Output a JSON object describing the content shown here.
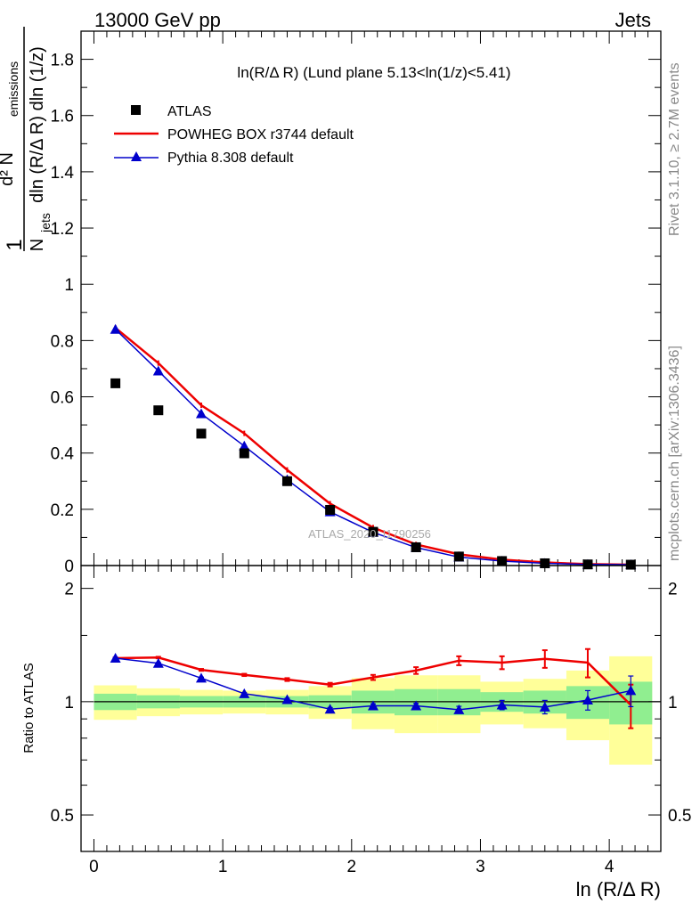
{
  "header": {
    "left": "13000 GeV pp",
    "right": "Jets"
  },
  "side_text": {
    "rivet": "Rivet 3.1.10, ≥ 2.7M events",
    "mcplots": "mcplots.cern.ch [arXiv:1306.3436]"
  },
  "watermark": "ATLAS_2020_I1790256",
  "colors": {
    "atlas": "#000000",
    "powheg": "#ee0000",
    "pythia": "#0000cc",
    "band_inner": "#90ee90",
    "band_outer": "#ffff99"
  },
  "chart_data": [
    {
      "type": "line",
      "title": "ln(R/Δ R) (Lund plane 5.13<ln(1/z)<5.41)",
      "xlabel": "ln (R/Δ R)",
      "ylabel": "1/N_jets d²N_emissions / dln(R/Δ R) dln(1/z)",
      "ylabel_parts": {
        "one": "1",
        "numer_d": "d² N",
        "numer_sub": "emissions",
        "denom_n": "N",
        "denom_sub": "jets",
        "denom_rest": "dln (R/Δ R) dln (1/z)"
      },
      "xlim": [
        -0.1,
        4.4
      ],
      "ylim": [
        0,
        1.9
      ],
      "yticks": [
        0,
        0.2,
        0.4,
        0.6,
        0.8,
        1,
        1.2,
        1.4,
        1.6,
        1.8
      ],
      "ytick_labels": [
        "0",
        "0.2",
        "0.4",
        "0.6",
        "0.8",
        "1",
        "1.2",
        "1.4",
        "1.6",
        "1.8"
      ],
      "legend_position": "top-left",
      "series": [
        {
          "name": "ATLAS",
          "style": "points",
          "x": [
            0.167,
            0.5,
            0.833,
            1.167,
            1.5,
            1.833,
            2.167,
            2.5,
            2.833,
            3.167,
            3.5,
            3.833,
            4.167
          ],
          "y": [
            0.648,
            0.552,
            0.469,
            0.399,
            0.3,
            0.198,
            0.12,
            0.065,
            0.032,
            0.016,
            0.008,
            0.004,
            0.003
          ]
        },
        {
          "name": "POWHEG BOX r3744 default",
          "style": "line",
          "x": [
            0.167,
            0.5,
            0.833,
            1.167,
            1.5,
            1.833,
            2.167,
            2.5,
            2.833,
            3.167,
            3.5,
            3.833,
            4.167
          ],
          "y": [
            0.845,
            0.72,
            0.57,
            0.47,
            0.34,
            0.22,
            0.135,
            0.075,
            0.04,
            0.021,
            0.011,
            0.005,
            0.003
          ]
        },
        {
          "name": "Pythia 8.308 default",
          "style": "line-triangles",
          "x": [
            0.167,
            0.5,
            0.833,
            1.167,
            1.5,
            1.833,
            2.167,
            2.5,
            2.833,
            3.167,
            3.5,
            3.833,
            4.167
          ],
          "y": [
            0.84,
            0.692,
            0.54,
            0.425,
            0.305,
            0.191,
            0.118,
            0.064,
            0.03,
            0.016,
            0.008,
            0.004,
            0.003
          ]
        }
      ]
    },
    {
      "type": "line",
      "title": "",
      "xlabel": "ln (R/Δ R)",
      "ylabel": "Ratio to ATLAS",
      "xlim": [
        -0.1,
        4.4
      ],
      "ylim": [
        0.4,
        2.3
      ],
      "log_y": true,
      "xticks": [
        0,
        1,
        2,
        3,
        4
      ],
      "xtick_labels": [
        "0",
        "1",
        "2",
        "3",
        "4"
      ],
      "yticks": [
        0.5,
        1,
        2
      ],
      "ytick_labels": [
        "0.5",
        "1",
        "2"
      ],
      "bin_edges": [
        0,
        0.333,
        0.667,
        1.0,
        1.333,
        1.667,
        2.0,
        2.333,
        2.667,
        3.0,
        3.333,
        3.667,
        4.0,
        4.333
      ],
      "band_inner": {
        "lo": [
          0.95,
          0.96,
          0.965,
          0.965,
          0.965,
          0.96,
          0.93,
          0.92,
          0.92,
          0.94,
          0.93,
          0.9,
          0.87
        ],
        "hi": [
          1.05,
          1.04,
          1.035,
          1.035,
          1.035,
          1.04,
          1.07,
          1.08,
          1.08,
          1.06,
          1.07,
          1.1,
          1.13
        ]
      },
      "band_outer": {
        "lo": [
          0.895,
          0.915,
          0.925,
          0.93,
          0.925,
          0.9,
          0.845,
          0.825,
          0.825,
          0.87,
          0.85,
          0.79,
          0.68
        ]
      },
      "band_outer_hi": [
        1.105,
        1.085,
        1.075,
        1.07,
        1.075,
        1.1,
        1.155,
        1.175,
        1.175,
        1.13,
        1.15,
        1.21,
        1.32
      ],
      "series": [
        {
          "name": "POWHEG BOX r3744 default",
          "x": [
            0.167,
            0.5,
            0.833,
            1.167,
            1.5,
            1.833,
            2.167,
            2.5,
            2.833,
            3.167,
            3.5,
            3.833,
            4.167
          ],
          "y": [
            1.305,
            1.31,
            1.215,
            1.178,
            1.145,
            1.11,
            1.16,
            1.21,
            1.285,
            1.27,
            1.3,
            1.27,
            0.98
          ],
          "err": [
            0.005,
            0.006,
            0.007,
            0.008,
            0.01,
            0.012,
            0.018,
            0.025,
            0.035,
            0.05,
            0.07,
            0.11,
            0.13
          ]
        },
        {
          "name": "Pythia 8.308 default",
          "x": [
            0.167,
            0.5,
            0.833,
            1.167,
            1.5,
            1.833,
            2.167,
            2.5,
            2.833,
            3.167,
            3.5,
            3.833,
            4.167
          ],
          "y": [
            1.305,
            1.265,
            1.155,
            1.05,
            1.013,
            0.955,
            0.975,
            0.975,
            0.952,
            0.98,
            0.968,
            1.01,
            1.07
          ],
          "err": [
            0.005,
            0.006,
            0.007,
            0.007,
            0.008,
            0.01,
            0.012,
            0.015,
            0.02,
            0.028,
            0.04,
            0.06,
            0.1
          ]
        }
      ]
    }
  ]
}
